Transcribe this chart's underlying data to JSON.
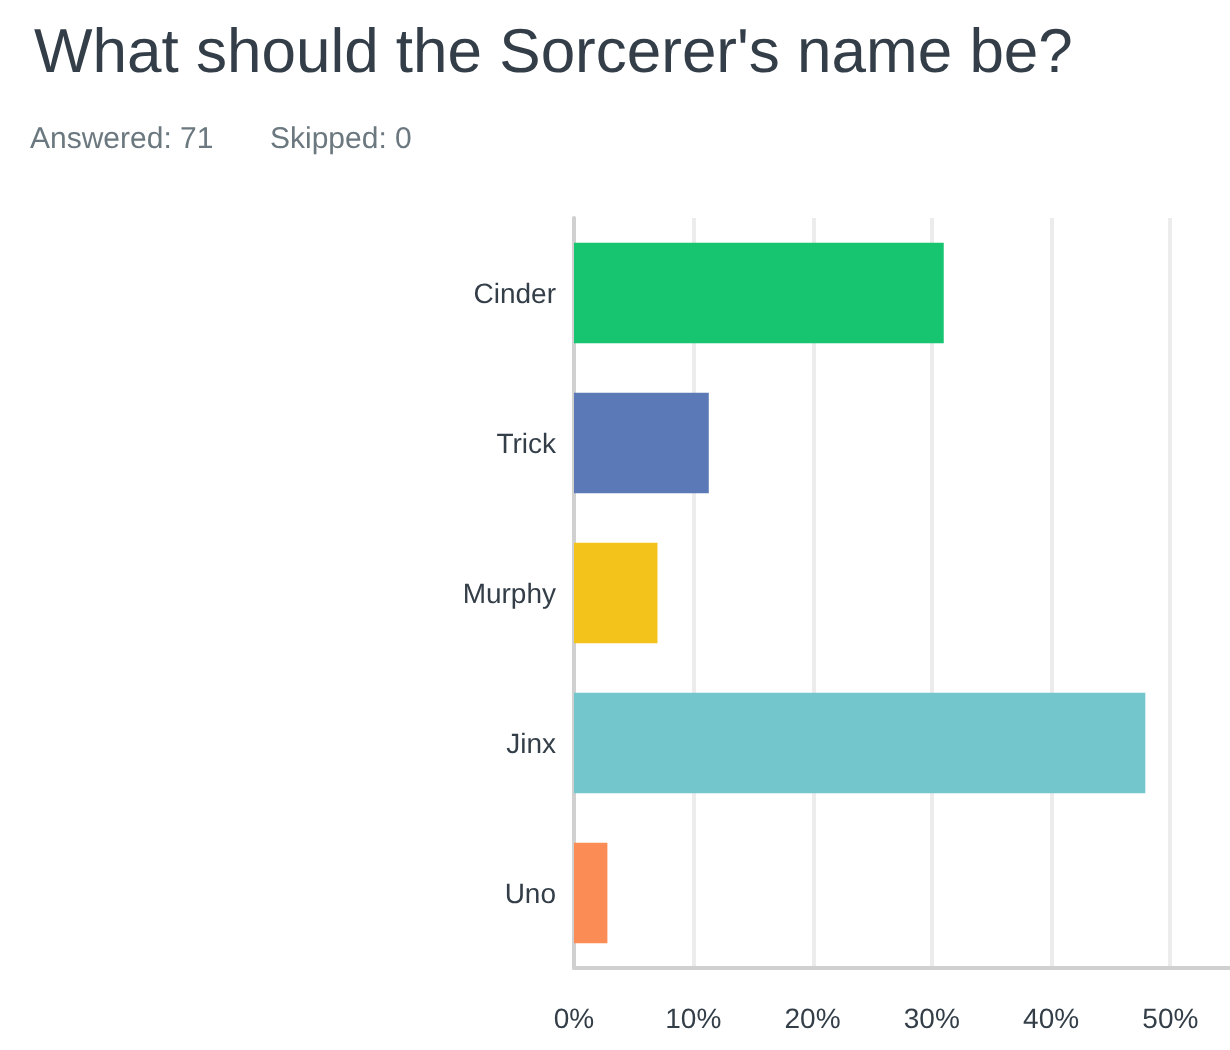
{
  "chart_data": {
    "type": "bar",
    "orientation": "horizontal",
    "title": "What should the Sorcerer's name be?",
    "annotations": [
      "Answered: 71",
      "Skipped: 0"
    ],
    "categories": [
      "Cinder",
      "Trick",
      "Murphy",
      "Jinx",
      "Uno"
    ],
    "values": [
      31.0,
      11.3,
      7.0,
      47.9,
      2.8
    ],
    "colors": [
      "#17c46f",
      "#5b79b7",
      "#f3c31c",
      "#73c6cc",
      "#fb8c55"
    ],
    "xlim": [
      0,
      55
    ],
    "xticks": [
      {
        "value": 0,
        "label": "0%"
      },
      {
        "value": 10,
        "label": "10%"
      },
      {
        "value": 20,
        "label": "20%"
      },
      {
        "value": 30,
        "label": "30%"
      },
      {
        "value": 40,
        "label": "40%"
      },
      {
        "value": 50,
        "label": "50%"
      }
    ],
    "grid": "x"
  }
}
